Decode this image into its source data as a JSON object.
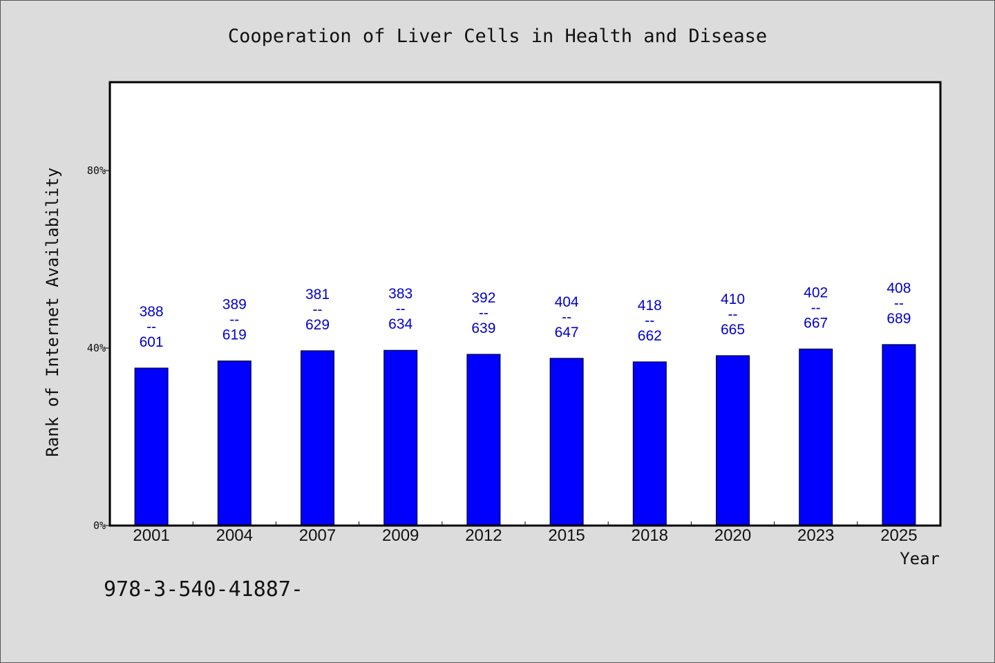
{
  "chart_data": {
    "type": "bar",
    "title": "Cooperation of Liver Cells in Health and Disease",
    "xlabel": "Year",
    "ylabel": "Rank of Internet Availability",
    "categories": [
      "2001",
      "2004",
      "2007",
      "2009",
      "2012",
      "2015",
      "2018",
      "2020",
      "2023",
      "2025"
    ],
    "values": [
      35.5,
      37.1,
      39.4,
      39.5,
      38.6,
      37.7,
      36.9,
      38.3,
      39.8,
      40.8
    ],
    "data_labels": [
      {
        "top": "388",
        "sep": "--",
        "bottom": "601"
      },
      {
        "top": "389",
        "sep": "--",
        "bottom": "619"
      },
      {
        "top": "381",
        "sep": "--",
        "bottom": "629"
      },
      {
        "top": "383",
        "sep": "--",
        "bottom": "634"
      },
      {
        "top": "392",
        "sep": "--",
        "bottom": "639"
      },
      {
        "top": "404",
        "sep": "--",
        "bottom": "647"
      },
      {
        "top": "418",
        "sep": "--",
        "bottom": "662"
      },
      {
        "top": "410",
        "sep": "--",
        "bottom": "665"
      },
      {
        "top": "402",
        "sep": "--",
        "bottom": "667"
      },
      {
        "top": "408",
        "sep": "--",
        "bottom": "689"
      }
    ],
    "yticks": [
      0,
      40,
      80
    ],
    "ytick_labels": [
      "0%",
      "40%",
      "80%"
    ],
    "ylim": [
      0,
      100
    ],
    "grid": false,
    "bar_color": "#0000ff",
    "label_color": "#0000cc",
    "plot_background": "#ffffff",
    "page_background": "#dcdcdc"
  },
  "footnote": "978-3-540-41887-"
}
